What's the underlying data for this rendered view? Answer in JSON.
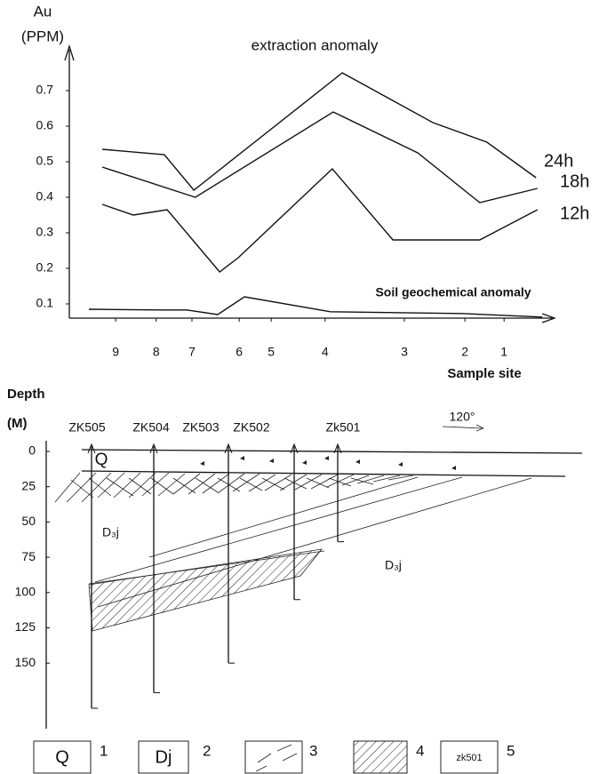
{
  "chart_data": {
    "type": "line",
    "title": "extraction anomaly",
    "y_label_lines": [
      "Au",
      "(PPM)"
    ],
    "x_label": "Sample site",
    "xlim": [
      0,
      100
    ],
    "ylim": [
      0.06,
      0.82
    ],
    "yticks": [
      0.1,
      0.2,
      0.3,
      0.4,
      0.5,
      0.6,
      0.7
    ],
    "xticks": [
      {
        "value": 9.7,
        "label": "9"
      },
      {
        "value": 18.2,
        "label": "8"
      },
      {
        "value": 25.7,
        "label": "7"
      },
      {
        "value": 35.6,
        "label": "6"
      },
      {
        "value": 42.3,
        "label": "5"
      },
      {
        "value": 53.6,
        "label": "4"
      },
      {
        "value": 70.2,
        "label": "3"
      },
      {
        "value": 82.9,
        "label": "2"
      },
      {
        "value": 91.1,
        "label": "1"
      }
    ],
    "series": [
      {
        "name": "24h",
        "color": "#111111",
        "x": [
          6.9,
          19.9,
          26.1,
          57.2,
          76.2,
          87.5,
          97.8
        ],
        "values": [
          0.535,
          0.52,
          0.42,
          0.75,
          0.61,
          0.555,
          0.455
        ]
      },
      {
        "name": "18h",
        "color": "#111111",
        "x": [
          6.9,
          26.4,
          55.3,
          73.0,
          86.0,
          98.1
        ],
        "values": [
          0.485,
          0.4,
          0.64,
          0.525,
          0.385,
          0.425
        ]
      },
      {
        "name": "12h",
        "color": "#111111",
        "x": [
          6.9,
          13.4,
          20.5,
          31.5,
          35.4,
          55.1,
          67.8,
          86.0,
          98.1
        ],
        "values": [
          0.38,
          0.35,
          0.365,
          0.19,
          0.23,
          0.48,
          0.28,
          0.28,
          0.365
        ]
      },
      {
        "name": "Soil geochemical anomaly",
        "color": "#111111",
        "x": [
          4.1,
          19.0,
          24.6,
          31.1,
          36.7,
          54.7,
          82.3,
          99.1
        ],
        "values": [
          0.085,
          0.083,
          0.083,
          0.07,
          0.12,
          0.078,
          0.073,
          0.063
        ]
      }
    ]
  },
  "section": {
    "depth_label": "Depth",
    "unit_label": "(M)",
    "depth_ticks": [
      0,
      25,
      50,
      75,
      100,
      125,
      150
    ],
    "boreholes": [
      {
        "label": "ZK505",
        "depth": 182
      },
      {
        "label": "ZK504",
        "depth": 171
      },
      {
        "label": "ZK503",
        "depth": 150
      },
      {
        "label": "ZK502",
        "depth": 105
      },
      {
        "label": "Zk501",
        "depth": 64
      }
    ],
    "layer_q": "Q",
    "formation_labels": [
      "D₃j",
      "D₃j"
    ],
    "direction": "120°"
  },
  "legend": {
    "items": [
      {
        "symbol": "Q",
        "number": "1"
      },
      {
        "symbol": "Dj",
        "number": "2"
      },
      {
        "symbol": null,
        "number": "3"
      },
      {
        "symbol": null,
        "number": "4"
      },
      {
        "symbol": "zk501",
        "number": "5"
      }
    ]
  }
}
